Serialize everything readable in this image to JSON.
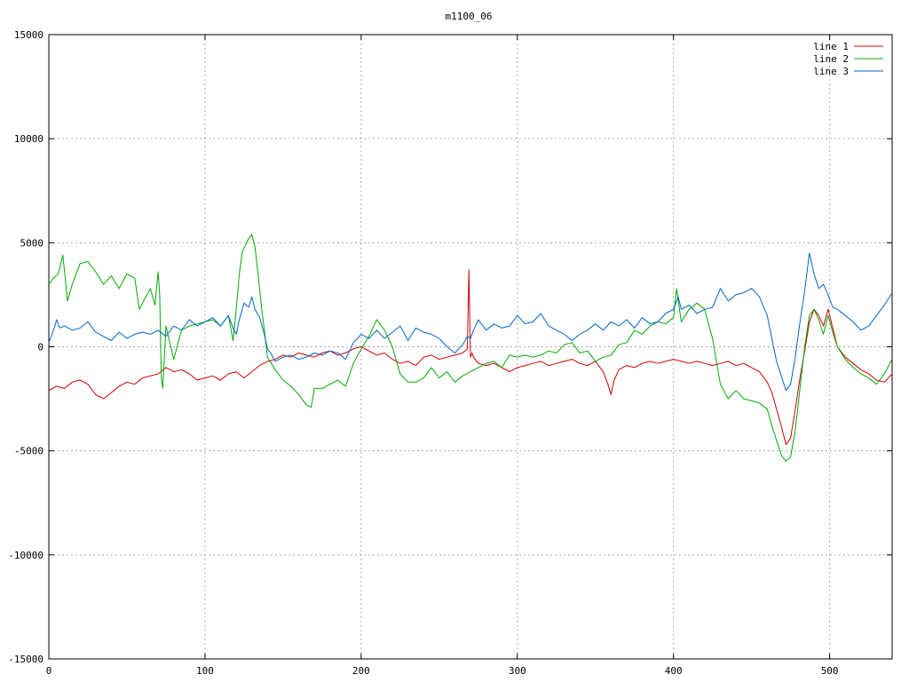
{
  "chart_data": {
    "type": "line",
    "title": "m1100_06",
    "xlabel": "",
    "ylabel": "",
    "xlim": [
      0,
      540
    ],
    "ylim": [
      -15000,
      15000
    ],
    "x_ticks": [
      "0",
      "100",
      "200",
      "300",
      "400",
      "500"
    ],
    "y_ticks": [
      "15000",
      "10000",
      "5000",
      "0",
      "-5000",
      "-10000",
      "-15000"
    ],
    "grid": true,
    "legend_position": "top-right",
    "series": [
      {
        "name": "line 1",
        "color": "#d00000",
        "x": [
          0,
          5,
          10,
          15,
          20,
          25,
          30,
          35,
          40,
          45,
          50,
          55,
          60,
          65,
          70,
          75,
          80,
          85,
          90,
          95,
          100,
          105,
          110,
          115,
          120,
          125,
          130,
          135,
          140,
          145,
          150,
          155,
          160,
          165,
          170,
          175,
          180,
          185,
          190,
          195,
          200,
          205,
          210,
          215,
          220,
          225,
          230,
          235,
          240,
          245,
          250,
          255,
          260,
          265,
          268,
          269,
          270,
          271,
          272,
          275,
          280,
          285,
          290,
          295,
          300,
          305,
          310,
          315,
          320,
          325,
          330,
          335,
          340,
          345,
          350,
          355,
          358,
          360,
          362,
          365,
          370,
          375,
          380,
          385,
          390,
          395,
          400,
          405,
          410,
          415,
          420,
          425,
          430,
          435,
          440,
          445,
          450,
          455,
          460,
          463,
          466,
          469,
          472,
          475,
          478,
          481,
          484,
          487,
          490,
          493,
          496,
          499,
          502,
          505,
          510,
          515,
          520,
          525,
          530,
          535,
          540
        ],
        "y": [
          -2100,
          -1900,
          -2000,
          -1700,
          -1600,
          -1800,
          -2300,
          -2500,
          -2200,
          -1900,
          -1700,
          -1800,
          -1500,
          -1400,
          -1300,
          -1000,
          -1200,
          -1100,
          -1300,
          -1600,
          -1500,
          -1400,
          -1600,
          -1300,
          -1200,
          -1500,
          -1200,
          -900,
          -700,
          -600,
          -400,
          -500,
          -300,
          -400,
          -500,
          -300,
          -200,
          -400,
          -300,
          -100,
          0,
          -200,
          -400,
          -300,
          -600,
          -800,
          -700,
          -900,
          -500,
          -400,
          -600,
          -500,
          -400,
          -300,
          -100,
          3700,
          -500,
          -300,
          -500,
          -800,
          -900,
          -800,
          -1000,
          -1200,
          -1000,
          -900,
          -800,
          -700,
          -900,
          -800,
          -700,
          -600,
          -800,
          -900,
          -700,
          -1200,
          -1800,
          -2300,
          -1600,
          -1100,
          -900,
          -1000,
          -800,
          -700,
          -800,
          -700,
          -600,
          -700,
          -800,
          -700,
          -800,
          -900,
          -800,
          -700,
          -900,
          -800,
          -1000,
          -1200,
          -1700,
          -2200,
          -3000,
          -3800,
          -4700,
          -4400,
          -3000,
          -1500,
          -200,
          1200,
          1800,
          1500,
          1000,
          1800,
          900,
          0,
          -500,
          -800,
          -1100,
          -1300,
          -1600,
          -1700,
          -1300
        ]
      },
      {
        "name": "line 2",
        "color": "#00aa00",
        "x": [
          0,
          3,
          6,
          9,
          12,
          15,
          20,
          25,
          28,
          30,
          35,
          40,
          45,
          50,
          55,
          58,
          60,
          65,
          68,
          70,
          71,
          72,
          73,
          75,
          80,
          85,
          90,
          95,
          100,
          105,
          110,
          115,
          118,
          120,
          122,
          124,
          126,
          128,
          130,
          132,
          134,
          136,
          138,
          140,
          145,
          150,
          155,
          160,
          165,
          168,
          170,
          175,
          180,
          185,
          190,
          195,
          200,
          205,
          210,
          215,
          220,
          225,
          230,
          235,
          240,
          245,
          250,
          255,
          260,
          265,
          270,
          275,
          280,
          285,
          290,
          295,
          300,
          305,
          310,
          315,
          320,
          325,
          330,
          335,
          340,
          345,
          350,
          355,
          360,
          365,
          370,
          375,
          380,
          385,
          390,
          395,
          400,
          402,
          405,
          410,
          415,
          420,
          422,
          425,
          430,
          435,
          440,
          445,
          450,
          455,
          460,
          463,
          466,
          469,
          472,
          475,
          478,
          481,
          484,
          487,
          490,
          493,
          496,
          499,
          502,
          505,
          510,
          515,
          520,
          525,
          530,
          535,
          540
        ],
        "y": [
          3000,
          3300,
          3500,
          4400,
          2200,
          3000,
          4000,
          4100,
          3800,
          3600,
          3000,
          3400,
          2800,
          3500,
          3300,
          1800,
          2100,
          2800,
          2000,
          3600,
          2500,
          -1500,
          -2000,
          1000,
          -600,
          800,
          1000,
          1100,
          1200,
          1300,
          1000,
          1500,
          300,
          1800,
          3500,
          4600,
          4900,
          5200,
          5400,
          4800,
          3500,
          2000,
          800,
          -500,
          -1100,
          -1600,
          -1900,
          -2300,
          -2800,
          -2900,
          -2000,
          -2000,
          -1800,
          -1600,
          -1900,
          -800,
          -100,
          500,
          1300,
          800,
          0,
          -1300,
          -1700,
          -1700,
          -1500,
          -1000,
          -1500,
          -1200,
          -1700,
          -1400,
          -1200,
          -1000,
          -800,
          -700,
          -1000,
          -400,
          -500,
          -400,
          -500,
          -400,
          -200,
          -300,
          100,
          200,
          -300,
          -200,
          -700,
          -500,
          -400,
          100,
          200,
          800,
          600,
          1000,
          1200,
          1100,
          1400,
          2800,
          1200,
          1800,
          2100,
          1800,
          1200,
          400,
          -1800,
          -2500,
          -2100,
          -2500,
          -2600,
          -2700,
          -3000,
          -3800,
          -4500,
          -5200,
          -5500,
          -5300,
          -4000,
          -2000,
          0,
          1500,
          1800,
          1300,
          600,
          1500,
          700,
          0,
          -600,
          -1000,
          -1300,
          -1500,
          -1800,
          -1300,
          -600
        ]
      },
      {
        "name": "line 3",
        "color": "#0066cc",
        "x": [
          0,
          3,
          5,
          7,
          10,
          15,
          20,
          25,
          30,
          35,
          40,
          45,
          50,
          55,
          60,
          65,
          70,
          75,
          80,
          85,
          90,
          95,
          100,
          105,
          110,
          115,
          118,
          120,
          122,
          125,
          128,
          130,
          132,
          135,
          138,
          140,
          142,
          145,
          150,
          155,
          160,
          165,
          170,
          175,
          180,
          185,
          190,
          195,
          200,
          205,
          210,
          215,
          220,
          225,
          230,
          235,
          240,
          245,
          250,
          255,
          260,
          265,
          268,
          270,
          272,
          275,
          280,
          285,
          290,
          295,
          300,
          305,
          310,
          315,
          320,
          325,
          330,
          335,
          340,
          345,
          350,
          355,
          360,
          365,
          370,
          375,
          380,
          385,
          390,
          395,
          400,
          403,
          405,
          410,
          415,
          420,
          425,
          430,
          435,
          440,
          445,
          450,
          455,
          460,
          463,
          466,
          469,
          472,
          475,
          478,
          481,
          484,
          487,
          490,
          493,
          496,
          499,
          502,
          505,
          510,
          515,
          520,
          525,
          530,
          535,
          540
        ],
        "y": [
          200,
          800,
          1300,
          900,
          1000,
          800,
          900,
          1200,
          700,
          500,
          300,
          700,
          400,
          600,
          700,
          600,
          800,
          500,
          1000,
          800,
          1300,
          1000,
          1200,
          1400,
          1000,
          1500,
          900,
          600,
          1300,
          2100,
          1900,
          2400,
          1800,
          1400,
          600,
          -100,
          -300,
          -700,
          -500,
          -400,
          -600,
          -500,
          -300,
          -400,
          -200,
          -300,
          -600,
          200,
          600,
          400,
          800,
          400,
          700,
          1000,
          300,
          900,
          700,
          600,
          400,
          0,
          -300,
          100,
          500,
          400,
          800,
          1300,
          800,
          1100,
          900,
          1000,
          1500,
          1100,
          1200,
          1600,
          1000,
          800,
          600,
          300,
          600,
          800,
          1100,
          800,
          1200,
          1000,
          1300,
          900,
          1400,
          1100,
          1200,
          1600,
          1800,
          2400,
          1800,
          2000,
          1600,
          1800,
          1900,
          2800,
          2200,
          2500,
          2600,
          2800,
          2400,
          1500,
          400,
          -700,
          -1400,
          -2100,
          -1800,
          -500,
          1200,
          2700,
          4500,
          3500,
          2800,
          3000,
          2500,
          1900,
          1800,
          1500,
          1200,
          800,
          1000,
          1500,
          2000,
          2600
        ]
      }
    ]
  }
}
